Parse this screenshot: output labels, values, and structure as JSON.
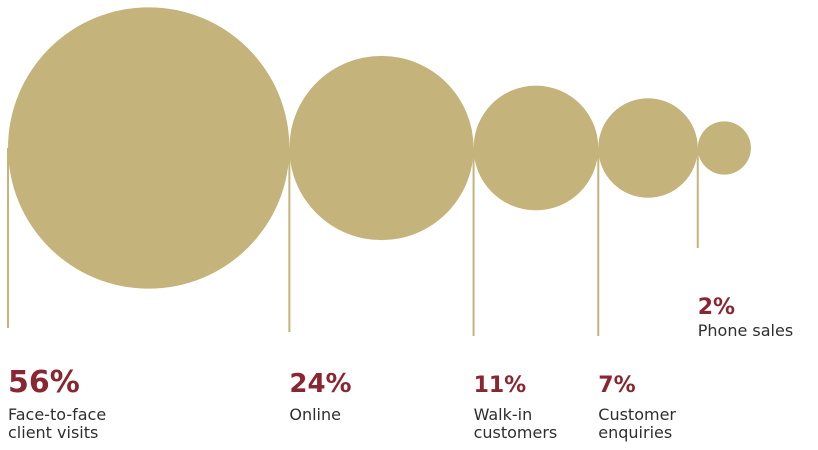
{
  "chart_data": {
    "type": "bubble",
    "categories": [
      "Face-to-face client visits",
      "Online",
      "Walk-in customers",
      "Customer enquiries",
      "Phone sales"
    ],
    "values": [
      56,
      24,
      11,
      7,
      2
    ],
    "value_labels": [
      "56%",
      "24%",
      "11%",
      "7%",
      "2%"
    ],
    "label_lines": [
      [
        "Face-to-face",
        "client visits"
      ],
      [
        "Online"
      ],
      [
        "Walk-in",
        "customers"
      ],
      [
        "Customer",
        "enquiries"
      ],
      [
        "Phone sales"
      ]
    ],
    "unit": "%",
    "title": "",
    "xlabel": "",
    "ylabel": "",
    "grid": false,
    "legend": "none"
  },
  "colors": {
    "bubble": "#c4b47b",
    "leader_line": "#c4b47b",
    "percent_text": "#8a2631",
    "label_text": "#2f2f2f",
    "background": "#ffffff"
  }
}
